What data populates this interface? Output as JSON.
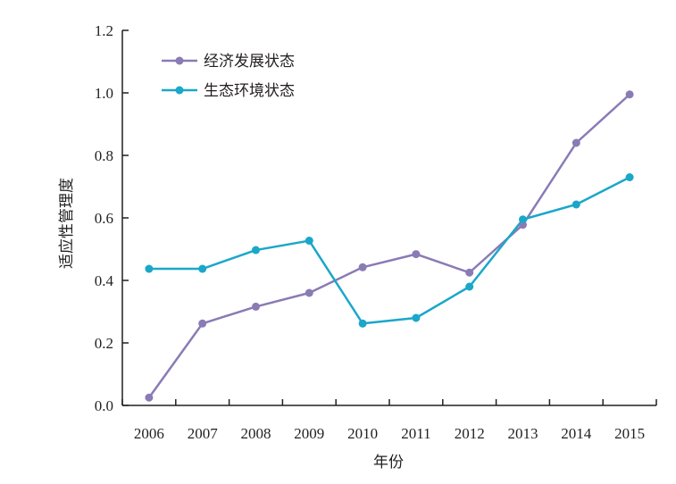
{
  "chart_data": {
    "type": "line",
    "title": "",
    "xlabel": "年份",
    "ylabel": "适应性管理度",
    "categories": [
      "2006",
      "2007",
      "2008",
      "2009",
      "2010",
      "2011",
      "2012",
      "2013",
      "2014",
      "2015"
    ],
    "ylim": [
      0,
      1.2
    ],
    "yticks": [
      "0.0",
      "0.2",
      "0.4",
      "0.6",
      "0.8",
      "1.0",
      "1.2"
    ],
    "grid": false,
    "legend_position": "top-left",
    "series": [
      {
        "name": "经济发展状态",
        "color": "#8a7bb5",
        "values": [
          0.025,
          0.262,
          0.316,
          0.36,
          0.442,
          0.484,
          0.425,
          0.578,
          0.84,
          0.995
        ]
      },
      {
        "name": "生态环境状态",
        "color": "#1aa7c9",
        "values": [
          0.437,
          0.437,
          0.497,
          0.527,
          0.262,
          0.28,
          0.38,
          0.595,
          0.643,
          0.73
        ]
      }
    ]
  }
}
